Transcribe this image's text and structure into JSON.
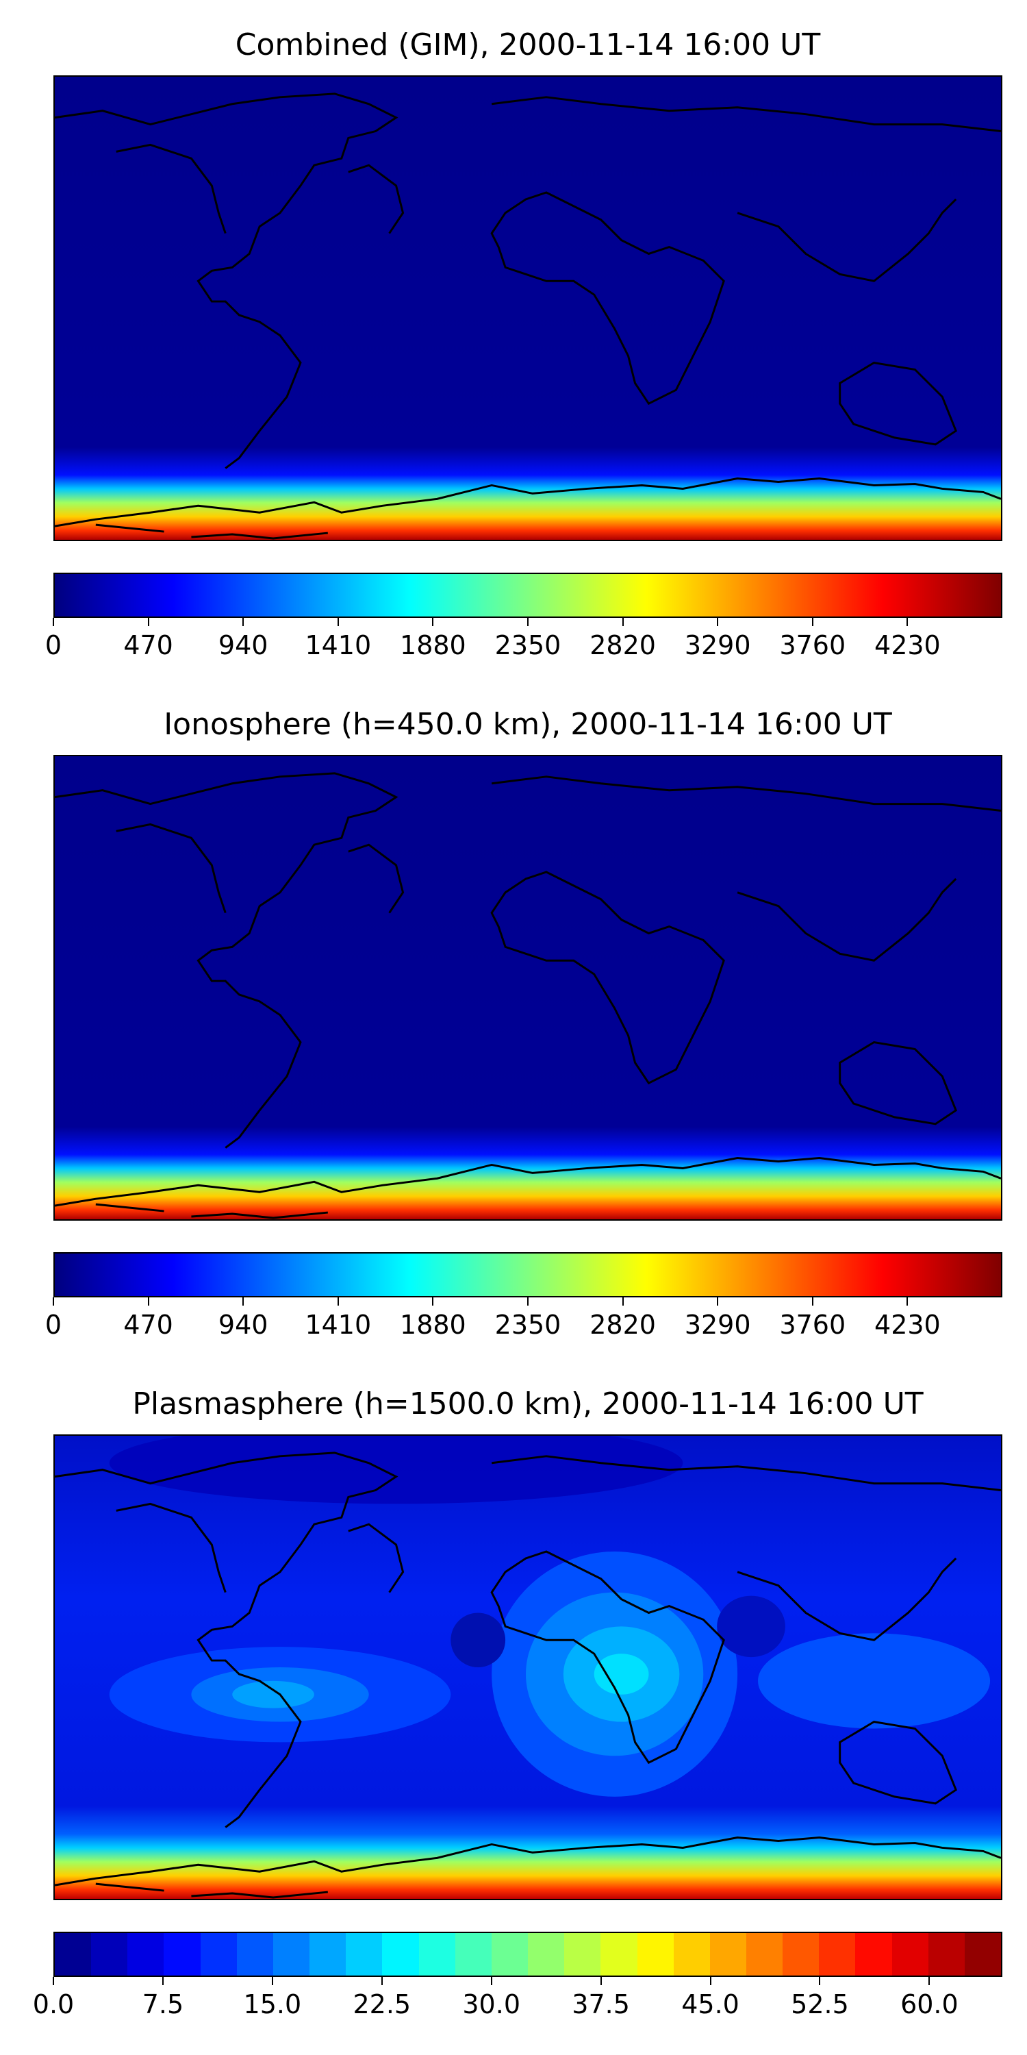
{
  "panels": [
    {
      "title": "Combined (GIM), 2000-11-14 16:00 UT",
      "colorbar": {
        "style": "continuous",
        "colormap": "jet",
        "range": [
          0,
          4700
        ],
        "ticks": [
          "0",
          "470",
          "940",
          "1410",
          "1880",
          "2350",
          "2820",
          "3290",
          "3760",
          "4230"
        ]
      }
    },
    {
      "title": "Ionosphere  (h=450.0 km), 2000-11-14 16:00 UT",
      "colorbar": {
        "style": "continuous",
        "colormap": "jet",
        "range": [
          0,
          4700
        ],
        "ticks": [
          "0",
          "470",
          "940",
          "1410",
          "1880",
          "2350",
          "2820",
          "3290",
          "3760",
          "4230"
        ]
      }
    },
    {
      "title": "Plasmasphere (h=1500.0 km), 2000-11-14 16:00 UT",
      "colorbar": {
        "style": "discrete",
        "colormap": "jet",
        "levels": 26,
        "range": [
          0,
          65
        ],
        "ticks": [
          "0.0",
          "7.5",
          "15.0",
          "22.5",
          "30.0",
          "37.5",
          "45.0",
          "52.5",
          "60.0"
        ]
      }
    }
  ],
  "colors": {
    "background_low": "#00008f",
    "coastline": "#000000"
  }
}
